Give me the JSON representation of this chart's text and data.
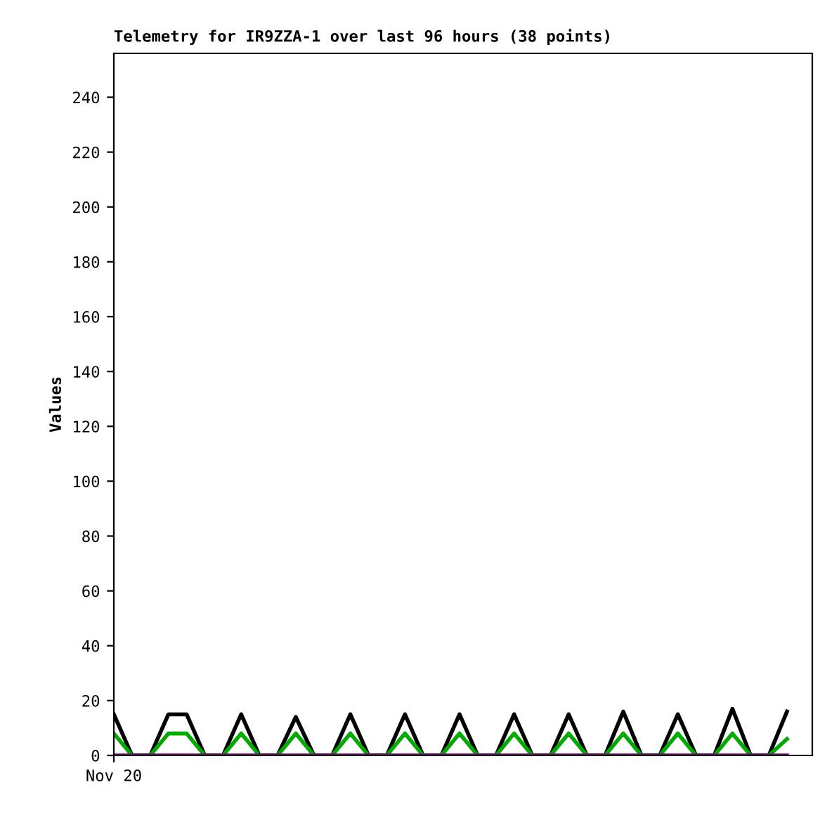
{
  "chart_data": {
    "type": "line",
    "title": "Telemetry for IR9ZZA-1 over last 96 hours (38 points)",
    "ylabel": "Values",
    "categories": [
      "Nov 20",
      null,
      null,
      null,
      null,
      null,
      null,
      null,
      null,
      null,
      null,
      null,
      null,
      null,
      null,
      null,
      null,
      null,
      null,
      null,
      null,
      null,
      null,
      null,
      null,
      null,
      null,
      null,
      null,
      null,
      null,
      null,
      null,
      null,
      null,
      null,
      null,
      null
    ],
    "series": [
      {
        "color": "#000000",
        "values": [
          15,
          0,
          0,
          15,
          15,
          0,
          0,
          15,
          0,
          0,
          14,
          0,
          0,
          15,
          0,
          0,
          15,
          0,
          0,
          15,
          0,
          0,
          15,
          0,
          0,
          15,
          0,
          0,
          16,
          0,
          0,
          15,
          0,
          0,
          17,
          0,
          0,
          16
        ]
      },
      {
        "color": "#00aa00",
        "values": [
          8,
          0,
          0,
          8,
          8,
          0,
          0,
          8,
          0,
          0,
          8,
          0,
          0,
          8,
          0,
          0,
          8,
          0,
          0,
          8,
          0,
          0,
          8,
          0,
          0,
          8,
          0,
          0,
          8,
          0,
          0,
          8,
          0,
          0,
          8,
          0,
          0,
          6
        ]
      },
      {
        "color": "#800080",
        "values": [
          0,
          0,
          0,
          0,
          0,
          0,
          0,
          0,
          0,
          0,
          0,
          0,
          0,
          0,
          0,
          0,
          0,
          0,
          0,
          0,
          0,
          0,
          0,
          0,
          0,
          0,
          0,
          0,
          0,
          0,
          0,
          0,
          0,
          0,
          0,
          0,
          0,
          0
        ]
      }
    ],
    "ylim": [
      0,
      256
    ],
    "yticks": [
      0,
      20,
      40,
      60,
      80,
      100,
      120,
      140,
      160,
      180,
      200,
      220,
      240
    ],
    "grid": false,
    "legend": false
  }
}
